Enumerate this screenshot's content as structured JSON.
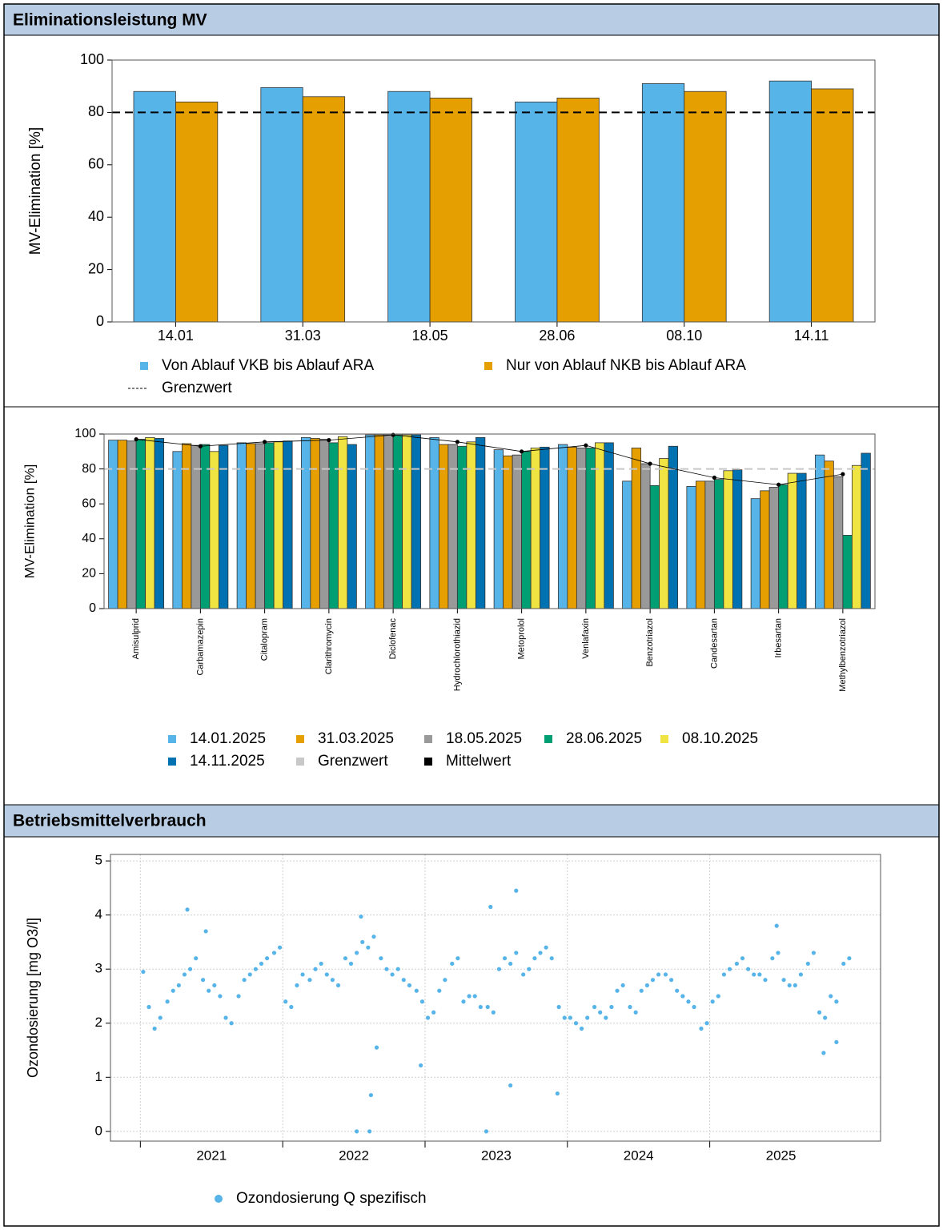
{
  "headers": [
    "Eliminationsleistung MV",
    "Betriebsmittelverbrauch"
  ],
  "chart_data": [
    {
      "type": "bar",
      "y_label": "MV-Elimination [%]",
      "categories": [
        "14.01",
        "31.03",
        "18.05",
        "28.06",
        "08.10",
        "14.11"
      ],
      "series": [
        {
          "name": "Von Ablauf VKB bis Ablauf ARA",
          "color": "#56b4e9",
          "values": [
            88,
            89.5,
            88,
            84,
            91,
            92
          ]
        },
        {
          "name": "Nur von Ablauf NKB bis Ablauf ARA",
          "color": "#e69f00",
          "values": [
            84,
            86,
            85.5,
            85.5,
            88,
            89
          ]
        }
      ],
      "reference_line": {
        "name": "Grenzwert",
        "value": 80,
        "color": "#000000"
      },
      "ylim": [
        0,
        100
      ],
      "yticks": [
        0,
        20,
        40,
        60,
        80,
        100
      ],
      "grid": false
    },
    {
      "type": "bar",
      "y_label": "MV-Elimination [%]",
      "categories": [
        "Amisulprid",
        "Carbamazepin",
        "Citalopram",
        "Clarithromycin",
        "Diclofenac",
        "Hydrochlorothiazid",
        "Metoprolol",
        "Venlafaxin",
        "Benzotriazol",
        "Candesartan",
        "Irbesartan",
        "Methylbenzotriazol"
      ],
      "series": [
        {
          "name": "14.01.2025",
          "color": "#56b4e9",
          "values": [
            96.5,
            90,
            95,
            98,
            99.5,
            98,
            91,
            94,
            73,
            70,
            63,
            88
          ]
        },
        {
          "name": "31.03.2025",
          "color": "#e69f00",
          "values": [
            96.5,
            94.5,
            94.5,
            97.5,
            99.5,
            94,
            87.5,
            92.5,
            92,
            73,
            67.5,
            84.5
          ]
        },
        {
          "name": "18.05.2025",
          "color": "#999999",
          "values": [
            96,
            93.5,
            94.5,
            97,
            99.5,
            94,
            88,
            92,
            83,
            73,
            69.5,
            75.5
          ]
        },
        {
          "name": "28.06.2025",
          "color": "#009e73",
          "values": [
            97,
            94,
            95,
            95,
            99.5,
            93,
            90,
            92,
            70.5,
            74,
            71,
            42
          ]
        },
        {
          "name": "08.10.2025",
          "color": "#f0e442",
          "values": [
            98,
            90,
            95.5,
            98.5,
            99.5,
            95.5,
            92,
            95,
            86,
            79,
            77.5,
            82
          ]
        },
        {
          "name": "14.11.2025",
          "color": "#0072b2",
          "values": [
            97.5,
            93.5,
            96,
            94,
            99.5,
            98,
            92.5,
            95,
            93,
            79.5,
            77.5,
            89
          ]
        }
      ],
      "reference_line": {
        "name": "Grenzwert",
        "value": 80,
        "color": "#c8c8c8"
      },
      "mean": {
        "name": "Mittelwert",
        "color": "#000000",
        "values": [
          97,
          93,
          95.5,
          96.5,
          99.5,
          95.5,
          90,
          93.5,
          83,
          75,
          71,
          77
        ]
      },
      "ylim": [
        0,
        100
      ],
      "yticks": [
        0,
        20,
        40,
        60,
        80,
        100
      ],
      "grid": false
    },
    {
      "type": "scatter",
      "y_label": "Ozondosierung [mg O3/l]",
      "x": [
        2021.02,
        2021.06,
        2021.1,
        2021.14,
        2021.19,
        2021.23,
        2021.27,
        2021.31,
        2021.35,
        2021.39,
        2021.44,
        2021.48,
        2021.52,
        2021.56,
        2021.6,
        2021.64,
        2021.69,
        2021.73,
        2021.77,
        2021.81,
        2021.85,
        2021.89,
        2021.94,
        2021.98,
        2022.02,
        2022.06,
        2022.1,
        2022.14,
        2022.19,
        2022.23,
        2022.27,
        2022.31,
        2022.35,
        2022.39,
        2022.44,
        2022.48,
        2022.52,
        2022.56,
        2022.6,
        2022.64,
        2022.69,
        2022.73,
        2022.77,
        2022.81,
        2022.85,
        2022.89,
        2022.94,
        2022.98,
        2023.02,
        2023.06,
        2023.1,
        2023.14,
        2023.19,
        2023.23,
        2023.27,
        2023.31,
        2023.35,
        2023.39,
        2023.44,
        2023.48,
        2023.52,
        2023.56,
        2023.6,
        2023.64,
        2023.69,
        2023.73,
        2023.77,
        2023.81,
        2023.85,
        2023.89,
        2023.94,
        2023.98,
        2024.02,
        2024.06,
        2024.1,
        2024.14,
        2024.19,
        2024.23,
        2024.27,
        2024.31,
        2024.35,
        2024.39,
        2024.44,
        2024.48,
        2024.52,
        2024.56,
        2024.6,
        2024.64,
        2024.69,
        2024.73,
        2024.77,
        2024.81,
        2024.85,
        2024.89,
        2024.94,
        2024.98,
        2025.02,
        2025.06,
        2025.1,
        2025.14,
        2025.19,
        2025.23,
        2025.27,
        2025.31,
        2025.35,
        2025.39,
        2025.44,
        2025.48,
        2025.52,
        2025.56,
        2025.6,
        2025.64,
        2025.69,
        2025.73,
        2025.77,
        2025.81,
        2025.85,
        2025.89,
        2025.94,
        2025.98,
        2021.33,
        2021.46,
        2022.55,
        2022.52,
        2022.61,
        2022.62,
        2022.66,
        2022.97,
        2023.46,
        2023.64,
        2023.6,
        2023.43,
        2023.93,
        2025.47,
        2025.8,
        2025.89
      ],
      "series": [
        {
          "name": "Ozondosierung Q spezifisch",
          "color": "#56b4e9",
          "values": [
            2.95,
            2.3,
            1.9,
            2.1,
            2.4,
            2.6,
            2.7,
            2.9,
            3.0,
            3.2,
            2.8,
            2.6,
            2.7,
            2.5,
            2.1,
            2.0,
            2.5,
            2.8,
            2.9,
            3.0,
            3.1,
            3.2,
            3.3,
            3.4,
            2.4,
            2.3,
            2.7,
            2.9,
            2.8,
            3.0,
            3.1,
            2.9,
            2.8,
            2.7,
            3.2,
            3.1,
            3.3,
            3.5,
            3.4,
            3.6,
            3.2,
            3.0,
            2.9,
            3.0,
            2.8,
            2.7,
            2.6,
            2.4,
            2.1,
            2.2,
            2.6,
            2.8,
            3.1,
            3.2,
            2.4,
            2.5,
            2.5,
            2.3,
            2.3,
            2.2,
            3.0,
            3.2,
            3.1,
            3.3,
            2.9,
            3.0,
            3.2,
            3.3,
            3.4,
            3.2,
            2.3,
            2.1,
            2.1,
            2.0,
            1.9,
            2.1,
            2.3,
            2.2,
            2.1,
            2.3,
            2.6,
            2.7,
            2.3,
            2.2,
            2.6,
            2.7,
            2.8,
            2.9,
            2.9,
            2.8,
            2.6,
            2.5,
            2.4,
            2.3,
            1.9,
            2.0,
            2.4,
            2.5,
            2.9,
            3.0,
            3.1,
            3.2,
            3.0,
            2.9,
            2.9,
            2.8,
            3.2,
            3.3,
            2.8,
            2.7,
            2.7,
            2.9,
            3.1,
            3.3,
            2.2,
            2.1,
            2.5,
            2.4,
            3.1,
            3.2,
            4.1,
            3.7,
            3.97,
            0,
            0,
            0.67,
            1.55,
            1.22,
            4.15,
            4.45,
            0.85,
            0,
            0.7,
            3.8,
            1.45,
            1.65
          ]
        }
      ],
      "xlim": [
        2020.79,
        2026.2
      ],
      "ylim": [
        -0.18,
        5.12
      ],
      "xticks": [
        {
          "value": 2021.5,
          "label": "2021"
        },
        {
          "value": 2022.5,
          "label": "2022"
        },
        {
          "value": 2023.5,
          "label": "2023"
        },
        {
          "value": 2024.5,
          "label": "2024"
        },
        {
          "value": 2025.5,
          "label": "2025"
        }
      ],
      "yticks": [
        0,
        1,
        2,
        3,
        4,
        5
      ],
      "grid": true
    }
  ]
}
